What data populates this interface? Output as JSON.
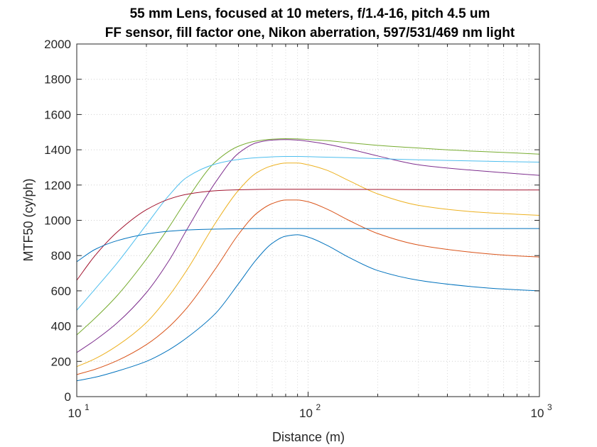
{
  "chart_data": {
    "type": "line",
    "title": [
      "55 mm Lens, focused at 10 meters, f/1.4-16, pitch 4.5 um",
      "FF sensor, fill factor one, Nikon aberration, 597/531/469 nm light"
    ],
    "xlabel": "Distance (m)",
    "ylabel": "MTF50 (cy/ph)",
    "xscale": "log",
    "xlim": [
      10,
      1000
    ],
    "ylim": [
      0,
      2000
    ],
    "yticks": [
      0,
      200,
      400,
      600,
      800,
      1000,
      1200,
      1400,
      1600,
      1800,
      2000
    ],
    "xticks": [
      {
        "value": 10,
        "base": "10",
        "exp": "1"
      },
      {
        "value": 100,
        "base": "10",
        "exp": "2"
      },
      {
        "value": 1000,
        "base": "10",
        "exp": "3"
      }
    ],
    "grid": true,
    "legend": "none",
    "series": [
      {
        "color": "#0072BD",
        "x": [
          10,
          12,
          15,
          20,
          25,
          30,
          40,
          50,
          60,
          70,
          80,
          90,
          100,
          120,
          150,
          200,
          300,
          500,
          700,
          1000
        ],
        "y": [
          90,
          110,
          145,
          200,
          265,
          335,
          475,
          640,
          780,
          870,
          910,
          918,
          905,
          860,
          790,
          715,
          660,
          625,
          610,
          600
        ]
      },
      {
        "color": "#D95319",
        "x": [
          10,
          12,
          15,
          20,
          25,
          30,
          40,
          50,
          60,
          70,
          80,
          90,
          100,
          120,
          150,
          200,
          300,
          500,
          700,
          1000
        ],
        "y": [
          125,
          155,
          205,
          295,
          395,
          505,
          730,
          920,
          1040,
          1095,
          1115,
          1115,
          1105,
          1065,
          1000,
          925,
          860,
          820,
          803,
          792
        ]
      },
      {
        "color": "#EDB120",
        "x": [
          10,
          12,
          15,
          20,
          25,
          30,
          40,
          50,
          60,
          70,
          80,
          90,
          100,
          120,
          150,
          200,
          300,
          500,
          700,
          1000
        ],
        "y": [
          170,
          215,
          290,
          420,
          570,
          720,
          990,
          1170,
          1270,
          1310,
          1325,
          1325,
          1315,
          1285,
          1225,
          1150,
          1085,
          1050,
          1038,
          1028
        ]
      },
      {
        "color": "#7E2F8E",
        "x": [
          10,
          12,
          15,
          20,
          25,
          30,
          40,
          50,
          60,
          70,
          80,
          90,
          100,
          120,
          150,
          200,
          300,
          500,
          700,
          1000
        ],
        "y": [
          250,
          320,
          420,
          590,
          770,
          950,
          1220,
          1380,
          1440,
          1455,
          1458,
          1455,
          1448,
          1432,
          1405,
          1365,
          1315,
          1285,
          1270,
          1255
        ]
      },
      {
        "color": "#77AC30",
        "x": [
          10,
          12,
          15,
          20,
          25,
          30,
          40,
          50,
          60,
          70,
          80,
          90,
          100,
          120,
          150,
          200,
          300,
          500,
          700,
          1000
        ],
        "y": [
          350,
          445,
          575,
          780,
          960,
          1120,
          1335,
          1420,
          1450,
          1460,
          1463,
          1462,
          1458,
          1452,
          1440,
          1425,
          1410,
          1393,
          1385,
          1375
        ]
      },
      {
        "color": "#4DBEEE",
        "x": [
          10,
          12,
          15,
          20,
          25,
          30,
          40,
          50,
          60,
          70,
          80,
          90,
          100,
          120,
          150,
          200,
          300,
          500,
          700,
          1000
        ],
        "y": [
          490,
          610,
          760,
          975,
          1140,
          1245,
          1320,
          1345,
          1355,
          1360,
          1362,
          1362,
          1361,
          1358,
          1355,
          1350,
          1343,
          1337,
          1333,
          1330
        ]
      },
      {
        "color": "#A2142F",
        "x": [
          10,
          12,
          15,
          20,
          25,
          30,
          40,
          50,
          60,
          70,
          80,
          90,
          100,
          120,
          150,
          200,
          300,
          500,
          700,
          1000
        ],
        "y": [
          660,
          800,
          935,
          1060,
          1120,
          1148,
          1168,
          1173,
          1175,
          1176,
          1176,
          1176,
          1176,
          1176,
          1175,
          1175,
          1174,
          1173,
          1172,
          1172
        ]
      },
      {
        "color": "#0072BD",
        "x": [
          10,
          12,
          15,
          20,
          25,
          30,
          40,
          50,
          60,
          70,
          80,
          90,
          100,
          120,
          150,
          200,
          300,
          500,
          700,
          1000
        ],
        "y": [
          765,
          835,
          885,
          922,
          938,
          945,
          950,
          952,
          953,
          953,
          953,
          953,
          953,
          953,
          953,
          953,
          953,
          953,
          953,
          953
        ]
      }
    ]
  }
}
